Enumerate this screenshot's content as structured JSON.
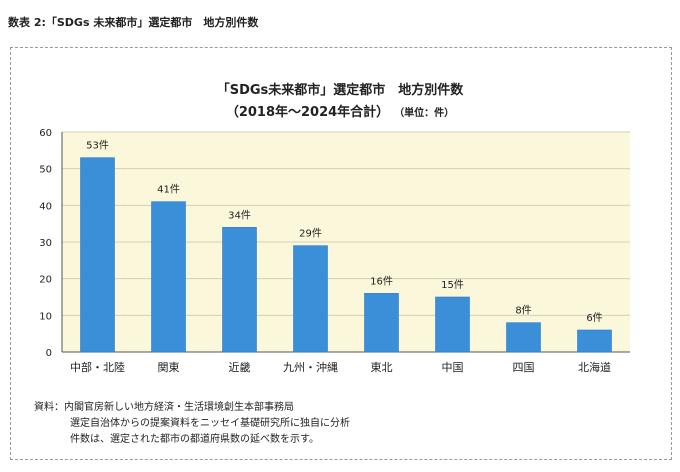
{
  "page_heading": "数表 2:「SDGs 未来都市」選定都市　地方別件数",
  "chart_data": {
    "type": "bar",
    "title": "「SDGs未来都市」選定都市　地方別件数",
    "subtitle": "（2018年～2024年合計）",
    "unit_note": "（単位：件）",
    "categories": [
      "中部・北陸",
      "関東",
      "近畿",
      "九州・沖縄",
      "東北",
      "中国",
      "四国",
      "北海道"
    ],
    "values": [
      53,
      41,
      34,
      29,
      16,
      15,
      8,
      6
    ],
    "data_labels": [
      "53件",
      "41件",
      "34件",
      "29件",
      "16件",
      "15件",
      "8件",
      "6件"
    ],
    "y_ticks": [
      "0",
      "10",
      "20",
      "30",
      "40",
      "50",
      "60"
    ],
    "ylim": [
      0,
      60
    ],
    "grid": true,
    "colors": {
      "bar": "#3b8fd9",
      "bar_edge": "#2f7cc2",
      "plot_bg": "#fbf7da",
      "grid": "#d4d0b4",
      "axis": "#555555"
    }
  },
  "source_note": {
    "line1": "資料：内閣官房新しい地方経済・生活環境創生本部事務局",
    "line2": "選定自治体からの提案資料をニッセイ基礎研究所に独自に分析",
    "line3": "件数は、選定された都市の都道府県数の延べ数を示す。"
  }
}
